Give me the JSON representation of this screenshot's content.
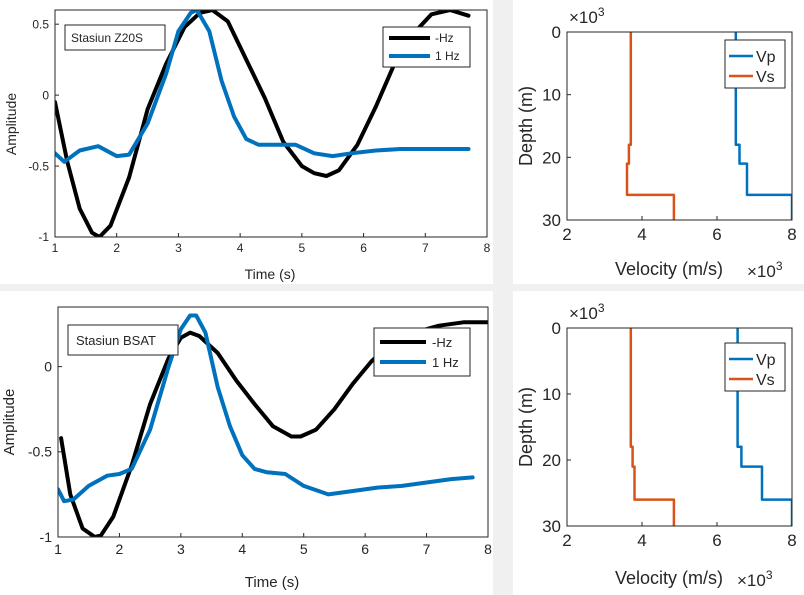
{
  "chart_data": [
    {
      "type": "line",
      "title": "",
      "xlabel": "Time (s)",
      "ylabel": "Amplitude",
      "xlim": [
        1,
        8
      ],
      "ylim": [
        -1,
        0.6
      ],
      "xticks": [
        "1",
        "2",
        "3",
        "4",
        "5",
        "6",
        "7",
        "8"
      ],
      "yticks": [
        "-1",
        "-0.5",
        "0",
        "0.5"
      ],
      "annotation": "Stasiun Z20S",
      "legend_position": "top-right",
      "series": [
        {
          "name": "-Hz",
          "color": "#000000",
          "x": [
            1.0,
            1.2,
            1.4,
            1.6,
            1.72,
            1.9,
            2.2,
            2.5,
            2.8,
            3.1,
            3.35,
            3.55,
            3.8,
            4.1,
            4.4,
            4.7,
            5.0,
            5.2,
            5.4,
            5.6,
            5.9,
            6.2,
            6.5,
            6.8,
            7.1,
            7.4,
            7.7
          ],
          "y": [
            -0.05,
            -0.47,
            -0.8,
            -0.97,
            -1.0,
            -0.92,
            -0.58,
            -0.1,
            0.22,
            0.48,
            0.58,
            0.6,
            0.52,
            0.25,
            -0.02,
            -0.33,
            -0.5,
            -0.55,
            -0.57,
            -0.53,
            -0.35,
            -0.08,
            0.22,
            0.43,
            0.57,
            0.6,
            0.56
          ]
        },
        {
          "name": "1 Hz",
          "color": "#0072BD",
          "x": [
            1.0,
            1.15,
            1.4,
            1.7,
            2.0,
            2.2,
            2.5,
            2.8,
            3.0,
            3.2,
            3.3,
            3.5,
            3.7,
            3.9,
            4.1,
            4.3,
            4.6,
            4.9,
            5.2,
            5.5,
            5.8,
            6.2,
            6.6,
            7.0,
            7.4,
            7.7
          ],
          "y": [
            -0.41,
            -0.47,
            -0.39,
            -0.36,
            -0.43,
            -0.42,
            -0.2,
            0.15,
            0.45,
            0.58,
            0.6,
            0.45,
            0.1,
            -0.15,
            -0.31,
            -0.35,
            -0.35,
            -0.35,
            -0.41,
            -0.43,
            -0.41,
            -0.39,
            -0.38,
            -0.38,
            -0.38,
            -0.38
          ]
        }
      ]
    },
    {
      "type": "line",
      "title": "",
      "xlabel": "Velocity (m/s)",
      "x_exponent": "×10",
      "x_exponent_power": "3",
      "ylabel": "Depth (m)",
      "y_exponent": "×10",
      "y_exponent_power": "3",
      "xlim": [
        2,
        8
      ],
      "ylim": [
        0,
        30
      ],
      "y_reversed": true,
      "xticks": [
        "2",
        "4",
        "6",
        "8"
      ],
      "yticks": [
        "0",
        "10",
        "20",
        "30"
      ],
      "legend_position": "top-right",
      "series": [
        {
          "name": "Vp",
          "color": "#0072BD",
          "x": [
            6.5,
            6.5,
            6.6,
            6.6,
            6.8,
            6.8,
            8.0,
            8.0
          ],
          "y": [
            0,
            18,
            18,
            21,
            21,
            26,
            26,
            30
          ]
        },
        {
          "name": "Vs",
          "color": "#D95319",
          "x": [
            3.7,
            3.7,
            3.65,
            3.65,
            3.6,
            3.6,
            4.85,
            4.85
          ],
          "y": [
            0,
            18,
            18,
            21,
            21,
            26,
            26,
            30
          ]
        }
      ]
    },
    {
      "type": "line",
      "title": "",
      "xlabel": "Time (s)",
      "ylabel": "Amplitude",
      "xlim": [
        1,
        8
      ],
      "ylim": [
        -1,
        0.35
      ],
      "xticks": [
        "1",
        "2",
        "3",
        "4",
        "5",
        "6",
        "7",
        "8"
      ],
      "yticks": [
        "-1",
        "-0.5",
        "0"
      ],
      "annotation": "Stasiun BSAT",
      "legend_position": "top-right",
      "series": [
        {
          "name": "-Hz",
          "color": "#000000",
          "x": [
            1.05,
            1.2,
            1.4,
            1.6,
            1.7,
            1.9,
            2.2,
            2.5,
            2.8,
            3.0,
            3.15,
            3.3,
            3.6,
            3.9,
            4.2,
            4.5,
            4.8,
            4.95,
            5.2,
            5.5,
            5.8,
            6.1,
            6.4,
            6.8,
            7.2,
            7.6,
            8.0
          ],
          "y": [
            -0.42,
            -0.75,
            -0.95,
            -1.0,
            -0.99,
            -0.88,
            -0.58,
            -0.22,
            0.05,
            0.17,
            0.2,
            0.18,
            0.08,
            -0.08,
            -0.22,
            -0.35,
            -0.41,
            -0.41,
            -0.37,
            -0.25,
            -0.1,
            0.03,
            0.13,
            0.2,
            0.24,
            0.26,
            0.26
          ]
        },
        {
          "name": "1 Hz",
          "color": "#0072BD",
          "x": [
            1.0,
            1.1,
            1.25,
            1.5,
            1.8,
            2.0,
            2.2,
            2.5,
            2.8,
            3.0,
            3.15,
            3.25,
            3.4,
            3.6,
            3.8,
            4.0,
            4.2,
            4.4,
            4.7,
            5.0,
            5.4,
            5.8,
            6.2,
            6.6,
            7.0,
            7.4,
            7.75
          ],
          "y": [
            -0.72,
            -0.79,
            -0.78,
            -0.7,
            -0.64,
            -0.63,
            -0.6,
            -0.37,
            0.0,
            0.22,
            0.3,
            0.3,
            0.2,
            -0.12,
            -0.35,
            -0.52,
            -0.6,
            -0.62,
            -0.63,
            -0.7,
            -0.75,
            -0.73,
            -0.71,
            -0.7,
            -0.68,
            -0.66,
            -0.65
          ]
        }
      ]
    },
    {
      "type": "line",
      "title": "",
      "xlabel": "Velocity (m/s)",
      "x_exponent": "×10",
      "x_exponent_power": "3",
      "ylabel": "Depth (m)",
      "y_exponent": "×10",
      "y_exponent_power": "3",
      "xlim": [
        2,
        8
      ],
      "ylim": [
        0,
        30
      ],
      "y_reversed": true,
      "xticks": [
        "2",
        "4",
        "6",
        "8"
      ],
      "yticks": [
        "0",
        "10",
        "20",
        "30"
      ],
      "legend_position": "top-right",
      "series": [
        {
          "name": "Vp",
          "color": "#0072BD",
          "x": [
            6.55,
            6.55,
            6.65,
            6.65,
            7.2,
            7.2,
            8.0,
            8.0
          ],
          "y": [
            0,
            18,
            18,
            21,
            21,
            26,
            26,
            30
          ]
        },
        {
          "name": "Vs",
          "color": "#D95319",
          "x": [
            3.7,
            3.7,
            3.75,
            3.75,
            3.8,
            3.8,
            4.85,
            4.85
          ],
          "y": [
            0,
            18,
            18,
            21,
            21,
            26,
            26,
            30
          ]
        }
      ]
    }
  ]
}
